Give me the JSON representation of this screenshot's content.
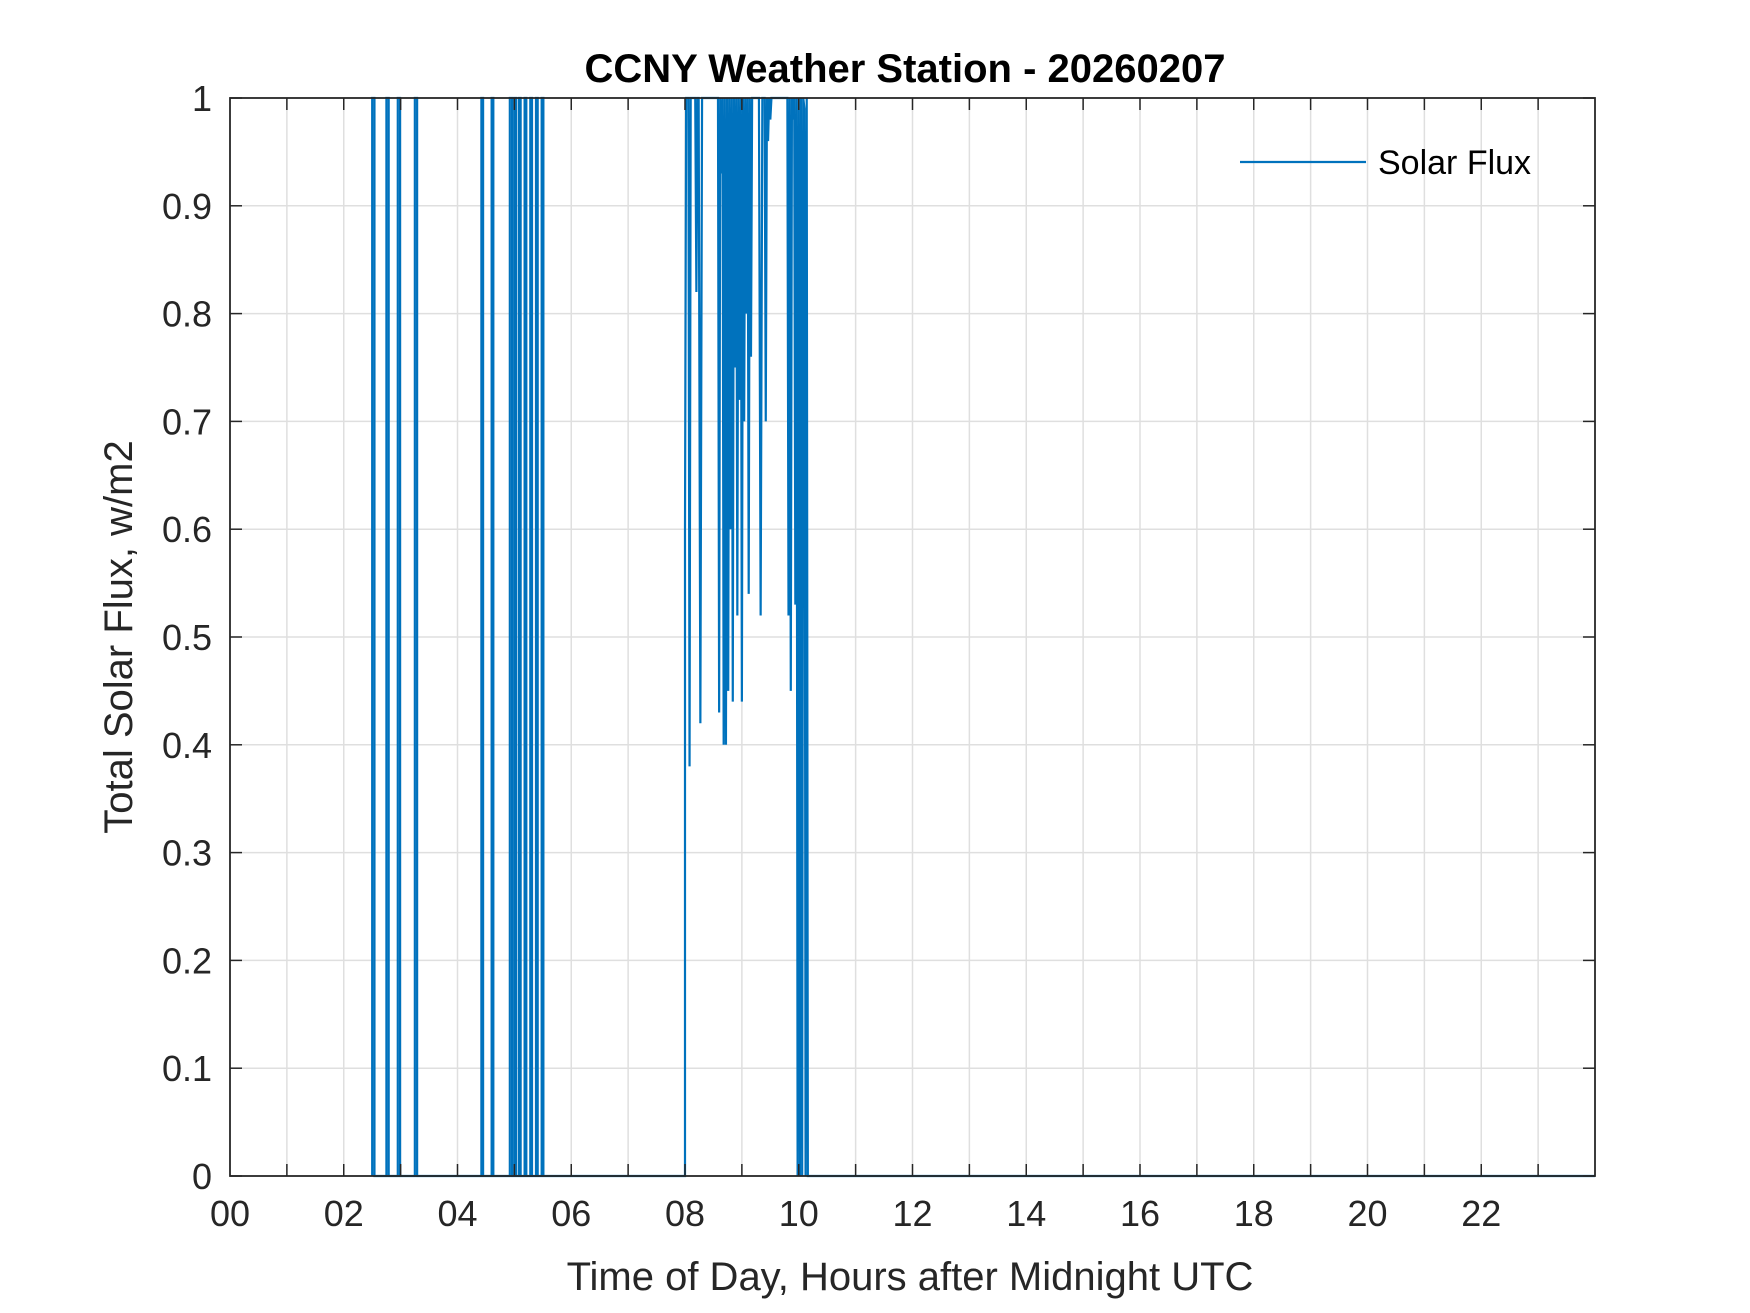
{
  "chart_data": {
    "type": "line",
    "title": "CCNY Weather Station - 20260207",
    "xlabel": "Time of Day, Hours after Midnight UTC",
    "ylabel": "Total Solar Flux, w/m2",
    "xlim": [
      0,
      24
    ],
    "ylim": [
      0,
      1
    ],
    "xticks": [
      0,
      2,
      4,
      6,
      8,
      10,
      12,
      14,
      16,
      18,
      20,
      22
    ],
    "xtick_labels": [
      "00",
      "02",
      "04",
      "06",
      "08",
      "10",
      "12",
      "14",
      "16",
      "18",
      "20",
      "22"
    ],
    "xgrid_step": 1,
    "yticks": [
      0,
      0.1,
      0.2,
      0.3,
      0.4,
      0.5,
      0.6,
      0.7,
      0.8,
      0.9,
      1
    ],
    "ytick_labels": [
      "0",
      "0.1",
      "0.2",
      "0.3",
      "0.4",
      "0.5",
      "0.6",
      "0.7",
      "0.8",
      "0.9",
      "1"
    ],
    "grid": true,
    "legend_position": "top-right",
    "series": [
      {
        "name": "Solar Flux",
        "color": "#0072BD",
        "points": [
          [
            2.5,
            0
          ],
          [
            2.5,
            1
          ],
          [
            2.54,
            1
          ],
          [
            2.54,
            0
          ],
          [
            2.75,
            0
          ],
          [
            2.75,
            1
          ],
          [
            2.79,
            1
          ],
          [
            2.79,
            0
          ],
          [
            2.95,
            0
          ],
          [
            2.95,
            1
          ],
          [
            2.99,
            1
          ],
          [
            2.99,
            0
          ],
          [
            3.25,
            0
          ],
          [
            3.25,
            1
          ],
          [
            3.29,
            1
          ],
          [
            3.29,
            0
          ],
          [
            4.42,
            0
          ],
          [
            4.42,
            1
          ],
          [
            4.45,
            1
          ],
          [
            4.45,
            0
          ],
          [
            4.6,
            0
          ],
          [
            4.6,
            1
          ],
          [
            4.63,
            1
          ],
          [
            4.63,
            0
          ],
          [
            4.92,
            0
          ],
          [
            4.92,
            1
          ],
          [
            4.96,
            1
          ],
          [
            4.96,
            0
          ],
          [
            5.0,
            0
          ],
          [
            5.0,
            1
          ],
          [
            5.03,
            1
          ],
          [
            5.03,
            0
          ],
          [
            5.08,
            0
          ],
          [
            5.08,
            1
          ],
          [
            5.11,
            1
          ],
          [
            5.11,
            0
          ],
          [
            5.18,
            0
          ],
          [
            5.18,
            1
          ],
          [
            5.21,
            1
          ],
          [
            5.21,
            0
          ],
          [
            5.28,
            0
          ],
          [
            5.28,
            1
          ],
          [
            5.31,
            1
          ],
          [
            5.31,
            0
          ],
          [
            5.38,
            0
          ],
          [
            5.38,
            1
          ],
          [
            5.41,
            1
          ],
          [
            5.41,
            0
          ],
          [
            5.48,
            0
          ],
          [
            5.48,
            1
          ],
          [
            5.51,
            1
          ],
          [
            5.51,
            0
          ],
          [
            5.51,
            0
          ],
          [
            8.0,
            0
          ],
          [
            8.0,
            0.6
          ],
          [
            8.02,
            1
          ],
          [
            8.06,
            1
          ],
          [
            8.08,
            0.38
          ],
          [
            8.1,
            1
          ],
          [
            8.18,
            1
          ],
          [
            8.2,
            0.82
          ],
          [
            8.22,
            1
          ],
          [
            8.24,
            1
          ],
          [
            8.27,
            0.42
          ],
          [
            8.3,
            1
          ],
          [
            8.58,
            1
          ],
          [
            8.6,
            0.43
          ],
          [
            8.62,
            1
          ],
          [
            8.64,
            0.93
          ],
          [
            8.66,
            1
          ],
          [
            8.68,
            0.4
          ],
          [
            8.7,
            1
          ],
          [
            8.72,
            0.4
          ],
          [
            8.74,
            1
          ],
          [
            8.76,
            0.45
          ],
          [
            8.78,
            1
          ],
          [
            8.8,
            0.6
          ],
          [
            8.82,
            1
          ],
          [
            8.84,
            0.44
          ],
          [
            8.86,
            1
          ],
          [
            8.88,
            0.75
          ],
          [
            8.9,
            1
          ],
          [
            8.92,
            0.52
          ],
          [
            8.94,
            1
          ],
          [
            8.96,
            0.72
          ],
          [
            8.98,
            1
          ],
          [
            9.0,
            0.44
          ],
          [
            9.02,
            1
          ],
          [
            9.04,
            0.7
          ],
          [
            9.06,
            1
          ],
          [
            9.08,
            0.8
          ],
          [
            9.1,
            1
          ],
          [
            9.12,
            0.54
          ],
          [
            9.14,
            1
          ],
          [
            9.16,
            0.76
          ],
          [
            9.18,
            1
          ],
          [
            9.3,
            1
          ],
          [
            9.33,
            0.52
          ],
          [
            9.36,
            1
          ],
          [
            9.4,
            1
          ],
          [
            9.42,
            0.7
          ],
          [
            9.44,
            1
          ],
          [
            9.46,
            0.96
          ],
          [
            9.48,
            1
          ],
          [
            9.5,
            0.98
          ],
          [
            9.52,
            1
          ],
          [
            9.8,
            1
          ],
          [
            9.82,
            0.52
          ],
          [
            9.84,
            1
          ],
          [
            9.86,
            0.45
          ],
          [
            9.88,
            1
          ],
          [
            9.9,
            0.98
          ],
          [
            9.92,
            1
          ],
          [
            9.94,
            0.53
          ],
          [
            9.96,
            1
          ],
          [
            9.98,
            0
          ],
          [
            10.0,
            1
          ],
          [
            10.02,
            0
          ],
          [
            10.04,
            1
          ],
          [
            10.06,
            0
          ],
          [
            10.08,
            1
          ],
          [
            10.1,
            0.99
          ],
          [
            10.12,
            0
          ],
          [
            10.14,
            1
          ],
          [
            10.16,
            0
          ],
          [
            24,
            0
          ]
        ]
      }
    ]
  }
}
